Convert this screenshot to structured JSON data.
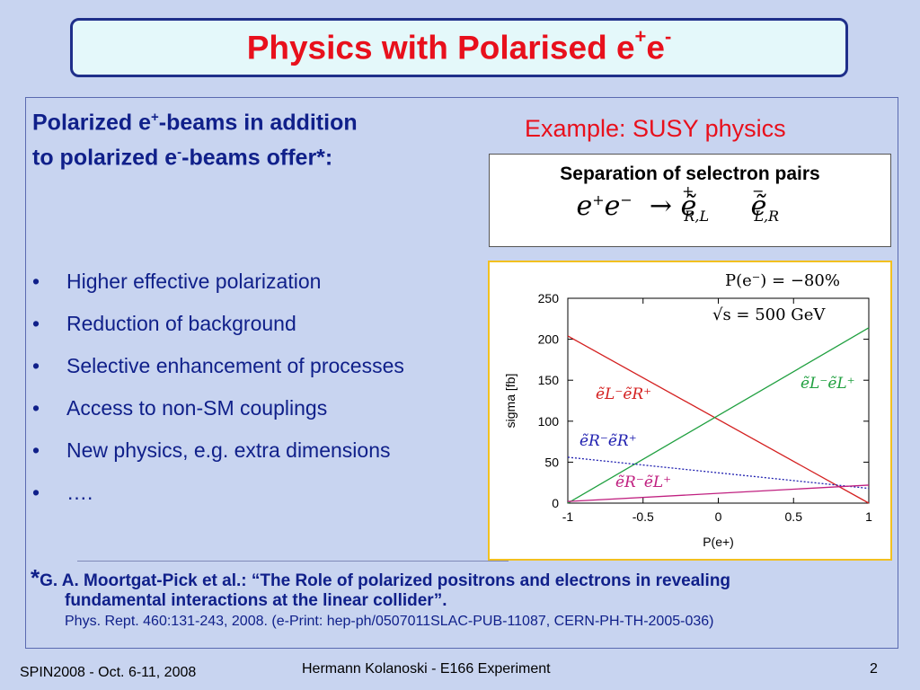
{
  "slide": {
    "title_main": "Physics with Polarised e",
    "title_sup1": "+",
    "title_e": "e",
    "title_sup2": "-",
    "heading_line1_a": "Polarized e",
    "heading_line1_sup": "+",
    "heading_line1_b": "-beams in addition",
    "heading_line2_a": "to polarized e",
    "heading_line2_sup": "-",
    "heading_line2_b": "-beams offer*:",
    "example_label": "Example: SUSY physics",
    "formula_title": "Separation of selectron pairs",
    "bullets": [
      "Higher effective polarization",
      "Reduction of background",
      "Selective enhancement of processes",
      "Access to non-SM couplings",
      "New physics, e.g. extra dimensions",
      "…."
    ],
    "reference_star": "*",
    "reference_line1": "G. A. Moortgat-Pick et al.: “The Role of polarized positrons and electrons in revealing",
    "reference_line2": "fundamental interactions at the linear collider”.",
    "reference_line3": "Phys. Rept. 460:131-243, 2008. (e-Print: hep-ph/0507011SLAC-PUB-11087, CERN-PH-TH-2005-036)",
    "footer_left": "SPIN2008 - Oct. 6-11, 2008",
    "footer_center": "Hermann Kolanoski - E166 Experiment",
    "footer_right": "2"
  },
  "chart_data": {
    "type": "line",
    "xlabel": "P(e+)",
    "ylabel": "sigma [fb]",
    "xlim": [
      -1,
      1
    ],
    "ylim": [
      0,
      250
    ],
    "x_ticks": [
      -1,
      -0.5,
      0,
      0.5,
      1
    ],
    "x_tick_labels": [
      "-1",
      "-0.5",
      "0",
      "0.5",
      "1"
    ],
    "y_ticks": [
      0,
      50,
      100,
      150,
      200,
      250
    ],
    "y_tick_labels": [
      "0",
      "50",
      "100",
      "150",
      "200",
      "250"
    ],
    "annotations": [
      "P(e⁻) = −80%",
      "√s = 500 GeV"
    ],
    "series": [
      {
        "name": "ẽL⁻ẽR⁺",
        "color": "#d42020",
        "dash": "solid",
        "x": [
          -1,
          1
        ],
        "y": [
          204,
          0
        ]
      },
      {
        "name": "ẽL⁻ẽL⁺",
        "color": "#20a040",
        "dash": "solid",
        "x": [
          -1,
          1
        ],
        "y": [
          0,
          214
        ]
      },
      {
        "name": "ẽR⁻ẽR⁺",
        "color": "#2020b0",
        "dash": "dotted",
        "x": [
          -1,
          1
        ],
        "y": [
          56,
          18
        ]
      },
      {
        "name": "ẽR⁻ẽL⁺",
        "color": "#c02080",
        "dash": "solid",
        "x": [
          -1,
          1
        ],
        "y": [
          2,
          22
        ]
      }
    ]
  }
}
